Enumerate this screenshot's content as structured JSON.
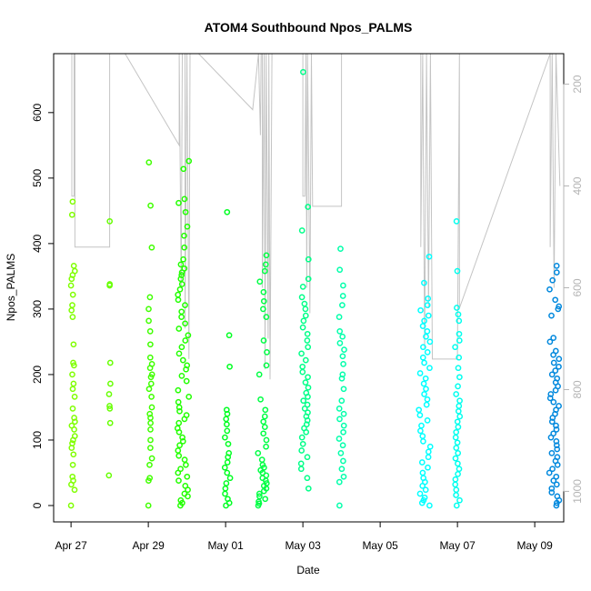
{
  "chart_data": {
    "type": "scatter",
    "title": "ATOM4 Southbound Npos_PALMS",
    "xlabel": "Date",
    "ylabel": "Npos_PALMS",
    "x_unit": "days since Apr 27",
    "xlim": [
      -0.45,
      12.75
    ],
    "ylim": [
      -25,
      690
    ],
    "x_ticks": [
      {
        "value": 0,
        "label": "Apr 27"
      },
      {
        "value": 2,
        "label": "Apr 29"
      },
      {
        "value": 4,
        "label": "May 01"
      },
      {
        "value": 6,
        "label": "May 03"
      },
      {
        "value": 8,
        "label": "May 05"
      },
      {
        "value": 10,
        "label": "May 07"
      },
      {
        "value": 12,
        "label": "May 09"
      }
    ],
    "y_ticks": [
      0,
      100,
      200,
      300,
      400,
      500,
      600
    ],
    "right_axis": {
      "ylim": [
        1060,
        140
      ],
      "ticks": [
        200,
        400,
        600,
        800,
        1000
      ],
      "color": "#b4b4b4"
    },
    "clusters": [
      {
        "x": 0.05,
        "spread": 0.05,
        "color": "#7fff00",
        "values": [
          0,
          24,
          32,
          38,
          44,
          62,
          78,
          88,
          95,
          100,
          106,
          116,
          122,
          128,
          134,
          148,
          166,
          178,
          186,
          200,
          214,
          218,
          246,
          288,
          298,
          306,
          322,
          336,
          346,
          352,
          358,
          366,
          444,
          464
        ]
      },
      {
        "x": 1.0,
        "spread": 0.03,
        "color": "#66ff00",
        "values": [
          46,
          126,
          148,
          152,
          170,
          186,
          218,
          336,
          338,
          434
        ]
      },
      {
        "x": 2.05,
        "spread": 0.05,
        "color": "#40ff00",
        "values": [
          0,
          38,
          42,
          62,
          72,
          88,
          100,
          116,
          126,
          134,
          140,
          150,
          166,
          178,
          186,
          196,
          200,
          210,
          216,
          226,
          246,
          266,
          282,
          300,
          318,
          394,
          458,
          524
        ]
      },
      {
        "x": 2.9,
        "spread": 0.15,
        "color": "#22ff00",
        "values": [
          0,
          4,
          8,
          14,
          18,
          24,
          30,
          38,
          44,
          50,
          56,
          62,
          70,
          76,
          84,
          92,
          98,
          104,
          112,
          118,
          126,
          132,
          138,
          144,
          150,
          158,
          166,
          176,
          190,
          198,
          208,
          214,
          222,
          232,
          242,
          252,
          260,
          270,
          278,
          288,
          296,
          306,
          314,
          322,
          330,
          338,
          346,
          352,
          356,
          362,
          368,
          376,
          394,
          412,
          426,
          448,
          462,
          468,
          514,
          526
        ]
      },
      {
        "x": 4.05,
        "spread": 0.07,
        "color": "#00ff22",
        "values": [
          0,
          4,
          10,
          18,
          26,
          34,
          42,
          50,
          58,
          66,
          74,
          80,
          94,
          104,
          114,
          124,
          132,
          140,
          146,
          212,
          260,
          448
        ]
      },
      {
        "x": 4.95,
        "spread": 0.12,
        "color": "#00ff44",
        "values": [
          0,
          3,
          6,
          10,
          14,
          18,
          22,
          26,
          30,
          34,
          38,
          42,
          46,
          50,
          54,
          58,
          62,
          70,
          80,
          90,
          100,
          110,
          120,
          128,
          136,
          146,
          162,
          200,
          214,
          234,
          252,
          288,
          300,
          312,
          326,
          342,
          358,
          368,
          382
        ]
      },
      {
        "x": 6.05,
        "spread": 0.1,
        "color": "#00ff88",
        "values": [
          26,
          42,
          56,
          64,
          74,
          84,
          94,
          104,
          112,
          118,
          124,
          130,
          136,
          142,
          148,
          154,
          160,
          166,
          172,
          180,
          188,
          196,
          204,
          212,
          222,
          232,
          242,
          252,
          262,
          272,
          282,
          290,
          300,
          308,
          318,
          334,
          346,
          376,
          420,
          456,
          662
        ]
      },
      {
        "x": 7.0,
        "spread": 0.07,
        "color": "#00ffaa",
        "values": [
          0,
          36,
          44,
          56,
          68,
          80,
          92,
          102,
          112,
          122,
          132,
          140,
          148,
          160,
          178,
          194,
          200,
          216,
          228,
          238,
          248,
          258,
          266,
          288,
          306,
          320,
          336,
          360,
          392
        ]
      },
      {
        "x": 10.0,
        "spread": 0.06,
        "color": "#00ffee",
        "values": [
          0,
          8,
          16,
          24,
          32,
          40,
          48,
          56,
          64,
          72,
          80,
          88,
          96,
          104,
          112,
          120,
          128,
          136,
          144,
          152,
          160,
          170,
          182,
          196,
          210,
          226,
          242,
          252,
          262,
          282,
          292,
          302,
          358,
          434
        ]
      },
      {
        "x": 9.15,
        "spread": 0.15,
        "color": "#00ffff",
        "values": [
          0,
          4,
          8,
          12,
          18,
          24,
          30,
          36,
          42,
          50,
          58,
          66,
          74,
          82,
          90,
          98,
          106,
          114,
          122,
          130,
          138,
          146,
          154,
          162,
          170,
          178,
          186,
          194,
          202,
          210,
          218,
          226,
          234,
          242,
          250,
          258,
          266,
          274,
          282,
          290,
          298,
          306,
          316,
          340,
          380
        ]
      },
      {
        "x": 12.5,
        "spread": 0.13,
        "color": "#0088dd",
        "values": [
          0,
          4,
          8,
          14,
          20,
          26,
          32,
          38,
          44,
          50,
          56,
          62,
          68,
          74,
          80,
          86,
          92,
          98,
          104,
          110,
          116,
          122,
          128,
          134,
          140,
          146,
          152,
          158,
          164,
          170,
          176,
          182,
          188,
          194,
          200,
          206,
          212,
          218,
          224,
          230,
          236,
          250,
          256,
          290,
          300,
          304,
          314,
          330,
          344,
          356,
          366
        ]
      }
    ],
    "depth_trace": {
      "color": "#c4c4c4",
      "points": [
        [
          0.02,
          140
        ],
        [
          0.02,
          420
        ],
        [
          0.08,
          420
        ],
        [
          0.08,
          140
        ],
        [
          0.1,
          140
        ],
        [
          0.1,
          520
        ],
        [
          0.12,
          520
        ],
        [
          0.12,
          520
        ],
        [
          1.0,
          520
        ],
        [
          1.0,
          140
        ],
        [
          1.4,
          140
        ],
        [
          2.8,
          320
        ],
        [
          2.8,
          140
        ],
        [
          2.85,
          600
        ],
        [
          2.88,
          140
        ],
        [
          2.95,
          140
        ],
        [
          2.95,
          680
        ],
        [
          3.0,
          140
        ],
        [
          3.05,
          740
        ],
        [
          3.08,
          140
        ],
        [
          3.3,
          140
        ],
        [
          4.7,
          250
        ],
        [
          4.85,
          140
        ],
        [
          4.9,
          300
        ],
        [
          4.92,
          140
        ],
        [
          4.95,
          140
        ],
        [
          4.95,
          600
        ],
        [
          5.0,
          140
        ],
        [
          5.02,
          760
        ],
        [
          5.05,
          140
        ],
        [
          5.1,
          700
        ],
        [
          5.12,
          140
        ],
        [
          5.15,
          780
        ],
        [
          5.2,
          140
        ],
        [
          6.0,
          140
        ],
        [
          6.0,
          420
        ],
        [
          6.05,
          420
        ],
        [
          6.08,
          140
        ],
        [
          6.1,
          600
        ],
        [
          6.12,
          140
        ],
        [
          6.15,
          360
        ],
        [
          6.18,
          650
        ],
        [
          6.22,
          140
        ],
        [
          6.25,
          440
        ],
        [
          7.0,
          440
        ],
        [
          7.0,
          140
        ],
        [
          9.05,
          140
        ],
        [
          9.05,
          520
        ],
        [
          9.1,
          140
        ],
        [
          9.15,
          720
        ],
        [
          9.2,
          140
        ],
        [
          9.25,
          640
        ],
        [
          9.3,
          140
        ],
        [
          9.35,
          740
        ],
        [
          9.4,
          740
        ],
        [
          10.0,
          740
        ],
        [
          10.05,
          140
        ],
        [
          10.05,
          640
        ],
        [
          12.4,
          140
        ],
        [
          12.4,
          520
        ],
        [
          12.45,
          140
        ],
        [
          12.5,
          600
        ],
        [
          12.55,
          140
        ],
        [
          12.65,
          400
        ]
      ]
    }
  }
}
